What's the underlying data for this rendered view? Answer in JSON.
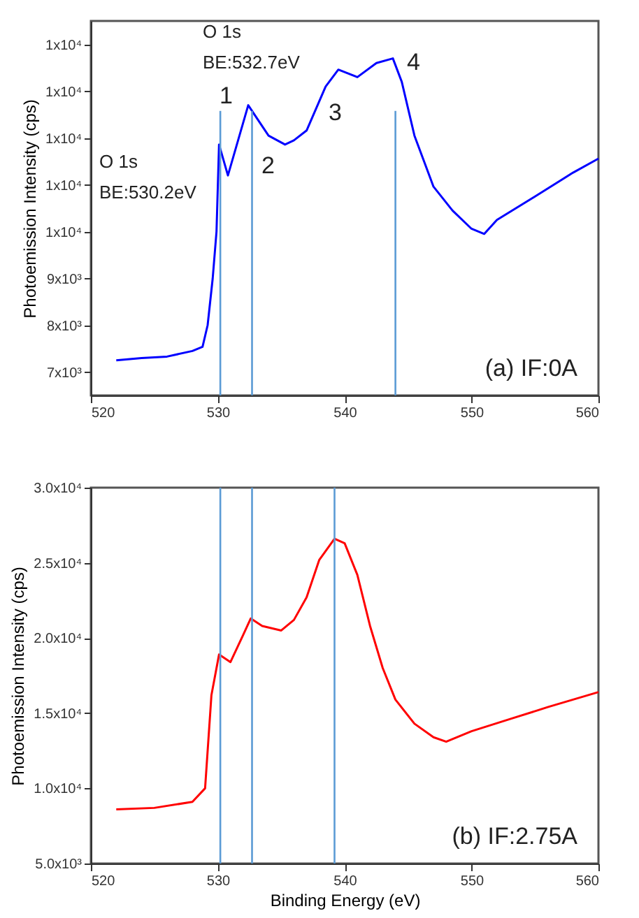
{
  "chart_data": [
    {
      "type": "line",
      "ylabel": "Photoemission Intensity (cps)",
      "xlim": [
        520,
        560
      ],
      "xticks": [
        520,
        530,
        540,
        550,
        560
      ],
      "ylim": [
        6500,
        14500
      ],
      "yticks": [
        {
          "value": 7000,
          "label": "7x10³"
        },
        {
          "value": 8000,
          "label": "8x10³"
        },
        {
          "value": 9000,
          "label": "9x10³"
        },
        {
          "value": 10000,
          "label": "1x10⁴"
        },
        {
          "value": 11000,
          "label": "1x10⁴"
        },
        {
          "value": 12000,
          "label": "1x10⁴"
        },
        {
          "value": 13000,
          "label": "1x10⁴"
        },
        {
          "value": 14000,
          "label": "1x10⁴"
        }
      ],
      "series": [
        {
          "color": "#0000ff",
          "x": [
            522,
            524,
            526,
            528,
            528.8,
            529.2,
            529.6,
            529.9,
            530.1,
            530.8,
            532.4,
            534,
            535.3,
            536,
            537,
            538.5,
            539.5,
            541,
            542.5,
            543.8,
            544.5,
            545.5,
            547,
            548.5,
            550,
            551,
            552,
            555,
            558,
            560
          ],
          "values": [
            7250,
            7300,
            7330,
            7450,
            7540,
            8000,
            9000,
            10000,
            11860,
            11200,
            12700,
            12050,
            11860,
            11950,
            12160,
            13100,
            13460,
            13300,
            13600,
            13700,
            13200,
            12050,
            10960,
            10450,
            10060,
            9950,
            10250,
            10750,
            11260,
            11560
          ]
        }
      ],
      "ref_lines": [
        {
          "axis": "x",
          "value": 530.2,
          "color": "#5b9bd5"
        },
        {
          "axis": "x",
          "value": 532.7,
          "color": "#5b9bd5"
        },
        {
          "axis": "x",
          "value": 544,
          "color": "#5b9bd5"
        }
      ],
      "annotations": [
        "O 1s\nBE:530.2eV",
        "O 1s\nBE:532.7eV",
        "1",
        "2",
        "3",
        "4",
        "(a) IF:0A"
      ],
      "grid": false
    },
    {
      "type": "line",
      "xlabel": "Binding Energy (eV)",
      "ylabel": "Photoemission Intensity (cps)",
      "xlim": [
        520,
        560
      ],
      "xticks": [
        520,
        530,
        540,
        550,
        560
      ],
      "ylim": [
        5000,
        30000
      ],
      "yticks": [
        {
          "value": 5000,
          "label": "5.0x10³"
        },
        {
          "value": 10000,
          "label": "1.0x10⁴"
        },
        {
          "value": 15000,
          "label": "1.5x10⁴"
        },
        {
          "value": 20000,
          "label": "2.0x10⁴"
        },
        {
          "value": 25000,
          "label": "2.5x10⁴"
        },
        {
          "value": 30000,
          "label": "3.0x10⁴"
        }
      ],
      "series": [
        {
          "color": "#ff0000",
          "x": [
            522,
            525,
            528,
            529,
            529.5,
            530.1,
            531,
            532,
            532.6,
            533.5,
            535,
            536,
            537,
            538,
            539.2,
            540,
            541,
            542,
            543,
            544,
            545.5,
            547,
            548,
            550,
            553,
            556,
            560
          ],
          "values": [
            8600,
            8700,
            9100,
            10000,
            16200,
            18900,
            18400,
            20200,
            21300,
            20800,
            20500,
            21200,
            22700,
            25200,
            26600,
            26300,
            24200,
            20800,
            18000,
            15900,
            14300,
            13400,
            13100,
            13800,
            14600,
            15400,
            16400
          ]
        }
      ],
      "ref_lines": [
        {
          "axis": "x",
          "value": 530.2,
          "color": "#5b9bd5"
        },
        {
          "axis": "x",
          "value": 532.7,
          "color": "#5b9bd5"
        },
        {
          "axis": "x",
          "value": 539.2,
          "color": "#5b9bd5"
        }
      ],
      "annotations": [
        "(b) IF:2.75A"
      ],
      "grid": false
    }
  ]
}
